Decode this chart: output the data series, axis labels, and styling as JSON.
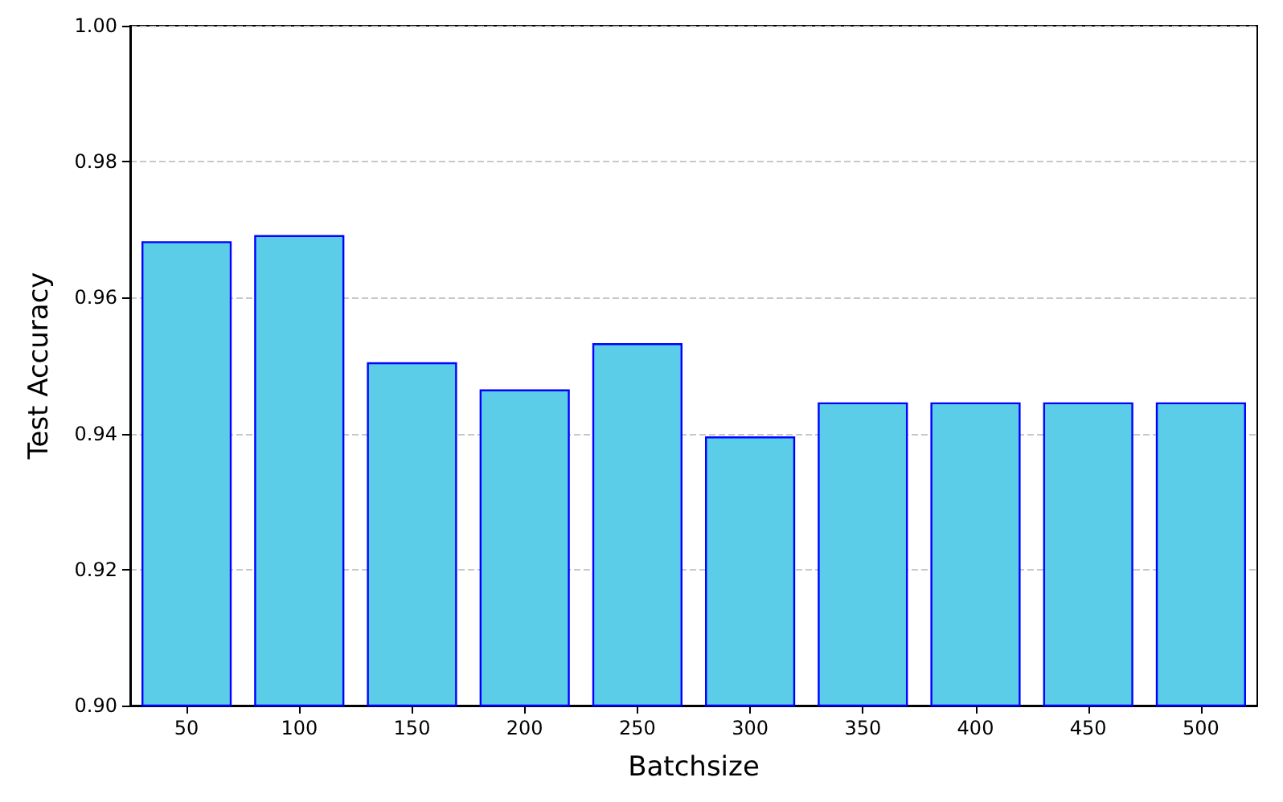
{
  "chart_data": {
    "type": "bar",
    "xlabel": "Batchsize",
    "ylabel": "Test Accuracy",
    "categories": [
      "50",
      "100",
      "150",
      "200",
      "250",
      "300",
      "350",
      "400",
      "450",
      "500"
    ],
    "values": [
      0.9683,
      0.9692,
      0.9505,
      0.9465,
      0.9533,
      0.9396,
      0.9446,
      0.9446,
      0.9446,
      0.9446
    ],
    "color": "#5bcde9",
    "ylim": [
      0.9,
      1.0
    ],
    "yticks": [
      {
        "value": 0.9,
        "label": "0.90"
      },
      0.92,
      0.94,
      0.96,
      0.98,
      {
        "value": 1.0,
        "label": "1.00"
      }
    ],
    "grid": "y"
  }
}
